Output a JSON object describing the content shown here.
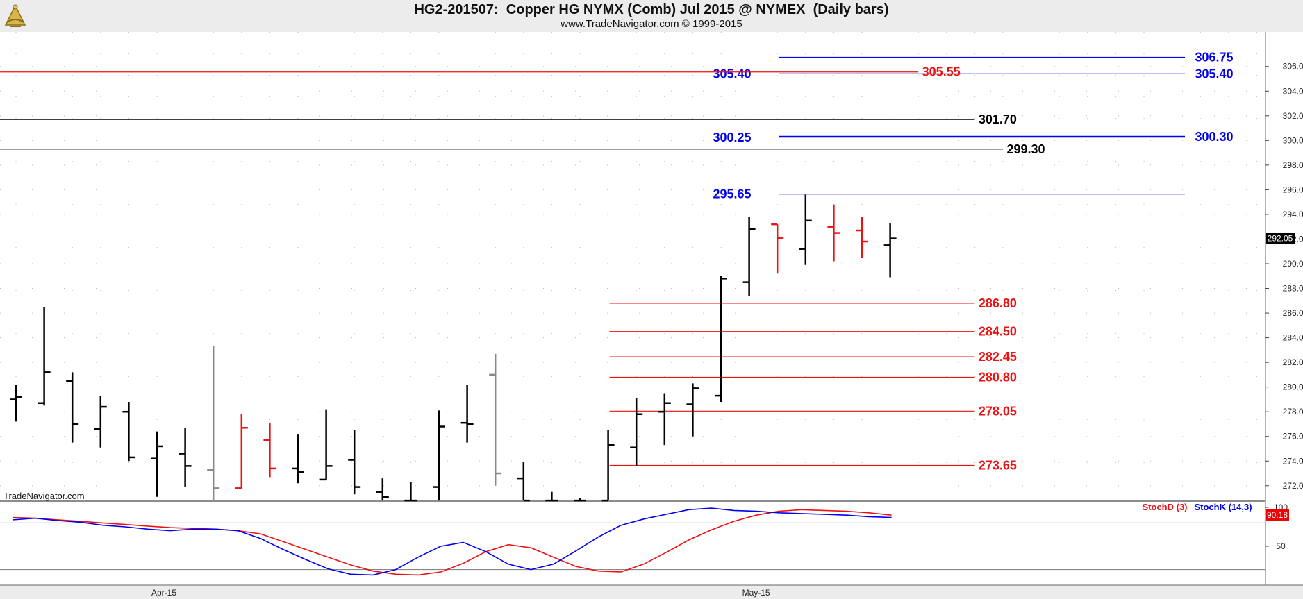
{
  "header": {
    "title": "HG2-201507:  Copper HG NYMX (Comb) Jul 2015 @ NYMEX  (Daily bars)",
    "subtitle": "www.TradeNavigator.com © 1999-2015"
  },
  "watermark": "TradeNavigator.com",
  "colors": {
    "blue": "#0000ee",
    "red": "#ee1111",
    "black": "#000000",
    "gray": "#888888",
    "green": "#22cc22"
  },
  "chart_data": [
    {
      "type": "bar",
      "subtype": "ohlc",
      "title": "HG2-201507:  Copper HG NYMX (Comb) Jul 2015 @ NYMEX  (Daily bars)",
      "ylim": [
        270.75,
        308.8
      ],
      "y_ticks": [
        "272.00",
        "274.00",
        "276.00",
        "278.00",
        "280.00",
        "282.00",
        "284.00",
        "286.00",
        "288.00",
        "290.00",
        "292.00",
        "294.00",
        "296.00",
        "298.00",
        "300.00",
        "302.00",
        "304.00",
        "306.00"
      ],
      "x_labels": [
        {
          "label": "Apr-15",
          "bar": 5
        },
        {
          "label": "May-15",
          "bar": 26
        }
      ],
      "last_price": "292.05",
      "bars": [
        {
          "o": 279.0,
          "h": 280.2,
          "l": 277.2,
          "c": 279.2,
          "color": "black"
        },
        {
          "o": 278.7,
          "h": 286.5,
          "l": 278.5,
          "c": 281.2,
          "color": "black"
        },
        {
          "o": 280.5,
          "h": 281.2,
          "l": 275.5,
          "c": 277.0,
          "color": "black"
        },
        {
          "o": 276.6,
          "h": 279.3,
          "l": 275.1,
          "c": 278.4,
          "color": "black"
        },
        {
          "o": 278.0,
          "h": 278.8,
          "l": 274.0,
          "c": 274.3,
          "color": "black"
        },
        {
          "o": 274.2,
          "h": 276.4,
          "l": 271.1,
          "c": 275.2,
          "color": "black"
        },
        {
          "o": 274.6,
          "h": 276.7,
          "l": 271.9,
          "c": 273.6,
          "color": "black"
        },
        {
          "o": 273.3,
          "h": 283.3,
          "l": 270.8,
          "c": 271.8,
          "color": "gray"
        },
        {
          "o": 271.8,
          "h": 277.8,
          "l": 271.8,
          "c": 276.7,
          "color": "red"
        },
        {
          "o": 275.7,
          "h": 277.1,
          "l": 272.7,
          "c": 273.4,
          "color": "red"
        },
        {
          "o": 273.4,
          "h": 276.2,
          "l": 272.2,
          "c": 273.1,
          "color": "black"
        },
        {
          "o": 272.5,
          "h": 278.2,
          "l": 272.5,
          "c": 273.6,
          "color": "black"
        },
        {
          "o": 274.1,
          "h": 276.5,
          "l": 271.3,
          "c": 271.9,
          "color": "black"
        },
        {
          "o": 271.5,
          "h": 272.6,
          "l": 270.8,
          "c": 271.1,
          "color": "black"
        },
        {
          "o": 270.8,
          "h": 272.3,
          "l": 270.8,
          "c": 270.8,
          "color": "black"
        },
        {
          "o": 271.9,
          "h": 278.1,
          "l": 270.8,
          "c": 276.8,
          "color": "black"
        },
        {
          "o": 277.1,
          "h": 280.2,
          "l": 275.5,
          "c": 277.0,
          "color": "black"
        },
        {
          "o": 281.0,
          "h": 282.7,
          "l": 272.0,
          "c": 273.0,
          "color": "gray"
        },
        {
          "o": 272.6,
          "h": 273.9,
          "l": 270.8,
          "c": 270.8,
          "color": "black"
        },
        {
          "o": 270.8,
          "h": 271.5,
          "l": 270.8,
          "c": 270.8,
          "color": "black"
        },
        {
          "o": 270.8,
          "h": 271.0,
          "l": 270.8,
          "c": 270.8,
          "color": "black"
        },
        {
          "o": 270.8,
          "h": 276.5,
          "l": 270.8,
          "c": 275.3,
          "color": "black"
        },
        {
          "o": 275.1,
          "h": 279.1,
          "l": 273.6,
          "c": 277.8,
          "color": "black"
        },
        {
          "o": 278.0,
          "h": 279.5,
          "l": 275.3,
          "c": 278.7,
          "color": "black"
        },
        {
          "o": 278.6,
          "h": 280.3,
          "l": 276.0,
          "c": 279.9,
          "color": "black"
        },
        {
          "o": 279.3,
          "h": 289.0,
          "l": 278.8,
          "c": 288.8,
          "color": "black"
        },
        {
          "o": 288.5,
          "h": 293.8,
          "l": 287.4,
          "c": 292.8,
          "color": "black"
        },
        {
          "o": 293.2,
          "h": 293.2,
          "l": 289.2,
          "c": 292.1,
          "color": "red"
        },
        {
          "o": 291.2,
          "h": 295.6,
          "l": 289.9,
          "c": 293.5,
          "color": "black"
        },
        {
          "o": 293.0,
          "h": 294.8,
          "l": 290.2,
          "c": 292.5,
          "color": "red"
        },
        {
          "o": 292.7,
          "h": 293.8,
          "l": 290.5,
          "c": 291.8,
          "color": "red"
        },
        {
          "o": 291.5,
          "h": 293.3,
          "l": 288.9,
          "c": 292.05,
          "color": "black"
        }
      ],
      "levels": [
        {
          "label": "306.75",
          "value": 306.75,
          "color": "blue",
          "x_from_bar": 27,
          "x_to_bar": 42,
          "label_side": "right"
        },
        {
          "label": "305.40",
          "value": 305.4,
          "color": "blue",
          "x_from_bar": 27,
          "x_to_bar": 42,
          "label_side": "both"
        },
        {
          "label": "305.55",
          "value": 305.55,
          "color": "red",
          "x_from_bar": -1,
          "x_to_bar": 32,
          "label_side": "end"
        },
        {
          "label": "301.70",
          "value": 301.7,
          "color": "black",
          "x_from_bar": -1,
          "x_to_bar": 34,
          "label_side": "end"
        },
        {
          "label": "300.30",
          "value": 300.3,
          "color": "blue",
          "x_from_bar": 27,
          "x_to_bar": 42,
          "label_side": "right",
          "thick": true
        },
        {
          "label": "300.25",
          "value": 300.25,
          "color": "blue",
          "x_from_bar": 27,
          "x_to_bar": 27,
          "label_side": "left"
        },
        {
          "label": "299.30",
          "value": 299.3,
          "color": "black",
          "x_from_bar": -1,
          "x_to_bar": 35,
          "label_side": "end"
        },
        {
          "label": "295.65",
          "value": 295.65,
          "color": "blue",
          "x_from_bar": 27,
          "x_to_bar": 42,
          "label_side": "left"
        },
        {
          "label": "286.80",
          "value": 286.8,
          "color": "red",
          "x_from_bar": 21,
          "x_to_bar": 34,
          "label_side": "end"
        },
        {
          "label": "284.50",
          "value": 284.5,
          "color": "red",
          "x_from_bar": 21,
          "x_to_bar": 34,
          "label_side": "end"
        },
        {
          "label": "282.45",
          "value": 282.45,
          "color": "red",
          "x_from_bar": 21,
          "x_to_bar": 34,
          "label_side": "end"
        },
        {
          "label": "280.80",
          "value": 280.8,
          "color": "red",
          "x_from_bar": 21,
          "x_to_bar": 34,
          "label_side": "end"
        },
        {
          "label": "278.05",
          "value": 278.05,
          "color": "red",
          "x_from_bar": 21,
          "x_to_bar": 34,
          "label_side": "end"
        },
        {
          "label": "273.65",
          "value": 273.65,
          "color": "red",
          "x_from_bar": 21,
          "x_to_bar": 34,
          "label_side": "end"
        }
      ]
    },
    {
      "type": "line",
      "ylim": [
        0,
        108
      ],
      "y_ticks": [
        "100",
        "50"
      ],
      "reference_lines": [
        80,
        20
      ],
      "last_value": "90.18",
      "series": [
        {
          "name": "StochD (3)",
          "color": "red",
          "values": [
            87,
            86,
            84,
            82,
            80,
            78,
            76,
            74,
            73,
            72,
            70,
            66,
            56,
            46,
            36,
            26,
            18,
            14,
            13,
            17,
            28,
            43,
            52,
            48,
            36,
            24,
            18,
            17,
            27,
            42,
            58,
            71,
            82,
            90,
            95,
            97,
            96,
            95,
            93,
            90
          ]
        },
        {
          "name": "StochK (14,3)",
          "color": "blue",
          "values": [
            84,
            86,
            83,
            81,
            77,
            75,
            72,
            70,
            72,
            72,
            70,
            60,
            46,
            33,
            21,
            14,
            13,
            20,
            36,
            50,
            55,
            43,
            27,
            20,
            27,
            44,
            62,
            77,
            85,
            91,
            97,
            99,
            96,
            95,
            93,
            92,
            91,
            90,
            88,
            87
          ]
        }
      ]
    }
  ]
}
